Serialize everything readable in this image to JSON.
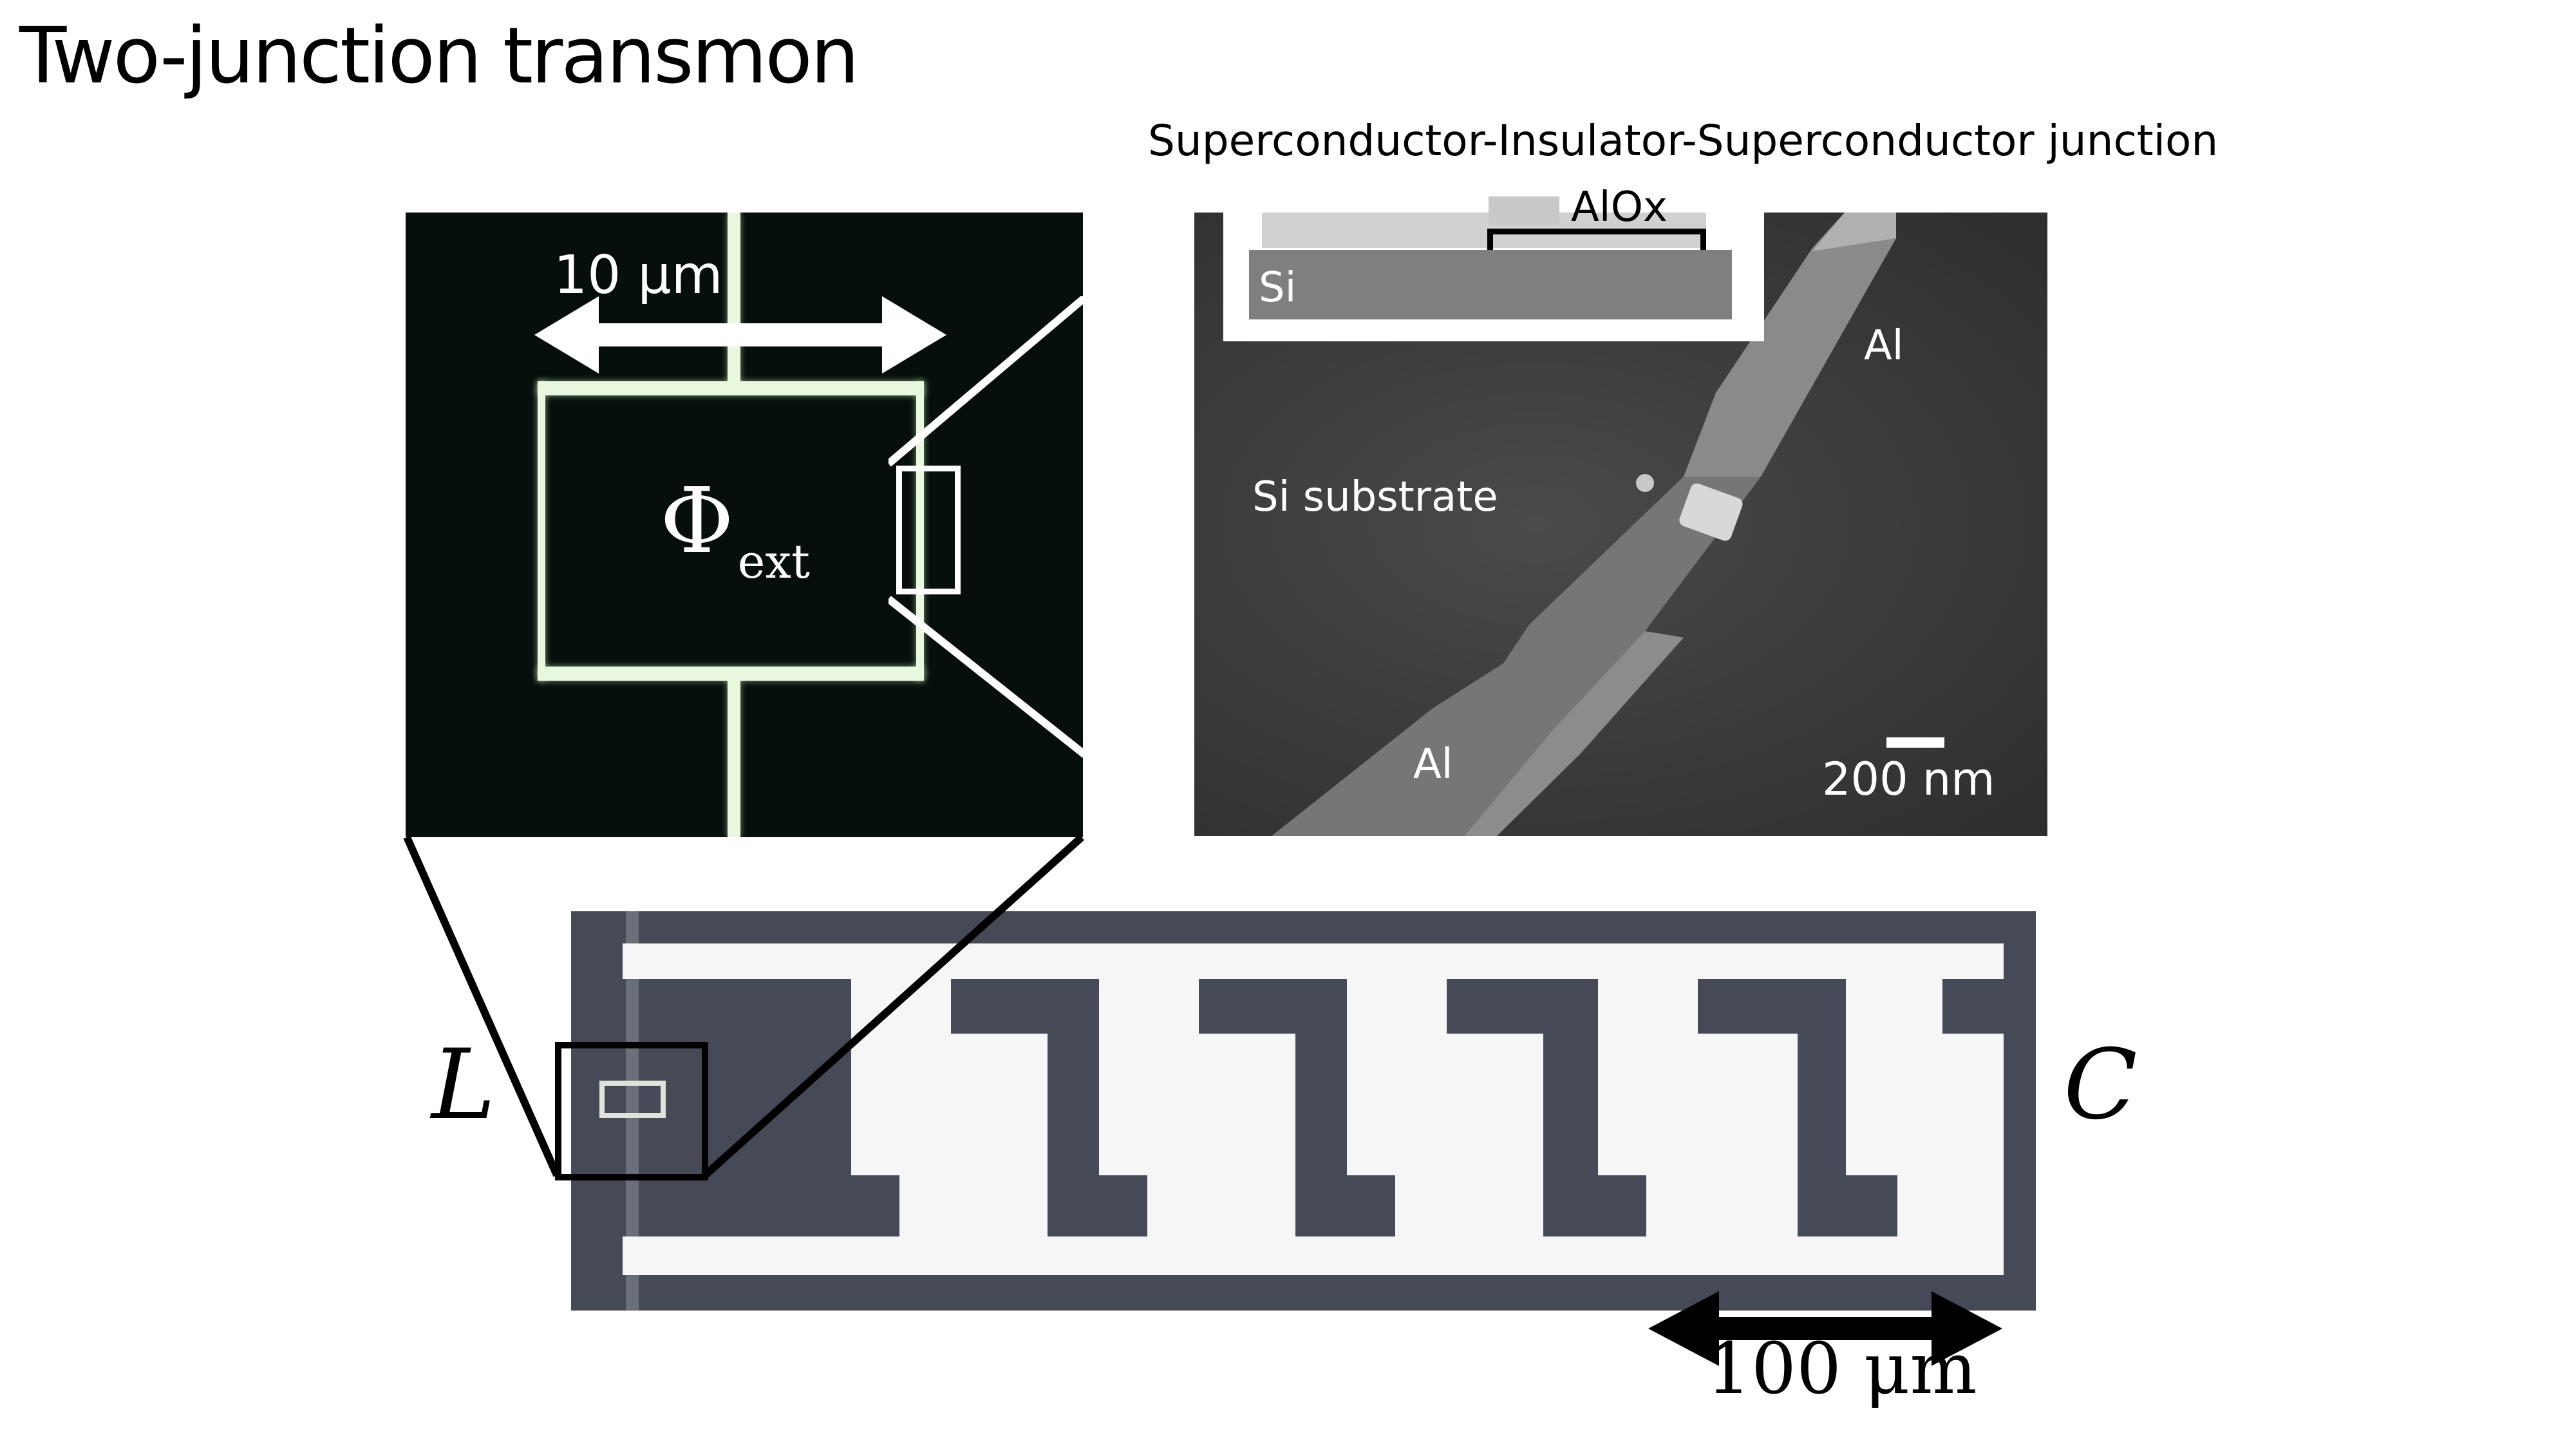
{
  "title": "Two-junction transmon",
  "sis_title": "Superconductor-Insulator-Superconductor junction",
  "optical": {
    "scale_label": "10 μm",
    "flux_symbol": "Φ",
    "flux_subscript": "ext"
  },
  "sem": {
    "substrate_label": "Si substrate",
    "al_top_label": "Al",
    "al_bottom_label": "Al",
    "scale_label": "200 nm"
  },
  "layer_diagram": {
    "oxide_label": "AlOx",
    "si_label": "Si"
  },
  "chip": {
    "inductor_label": "L",
    "capacitor_label": "C",
    "scale_label": "100 μm"
  }
}
